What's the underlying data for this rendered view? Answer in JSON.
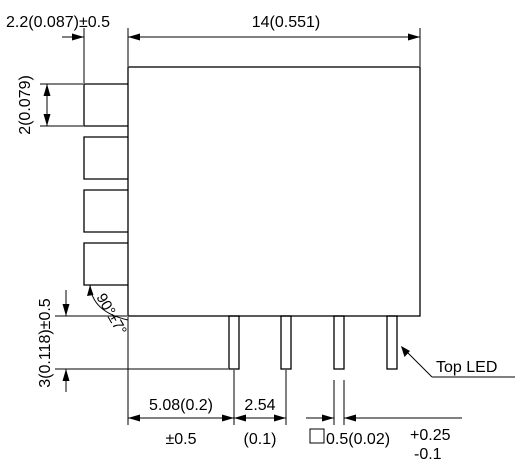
{
  "dimensions": {
    "pin_offset": "2.2(0.087)±0.5",
    "body_width": "14(0.551)",
    "pad_height": "2(0.079)",
    "pin_length": "3(0.118)±0.5",
    "angle": "90°±7°",
    "pin_spacing_mm": "5.08(0.2)",
    "pin_spacing_tol": "±0.5",
    "pitch_mm": "2.54",
    "pitch_in": "(0.1)",
    "pin_size_symbol": "□",
    "pin_size": "0.5(0.02)",
    "pin_size_tol_plus": "+0.25",
    "pin_size_tol_minus": "-0.1"
  },
  "labels": {
    "top_led": "Top LED"
  }
}
